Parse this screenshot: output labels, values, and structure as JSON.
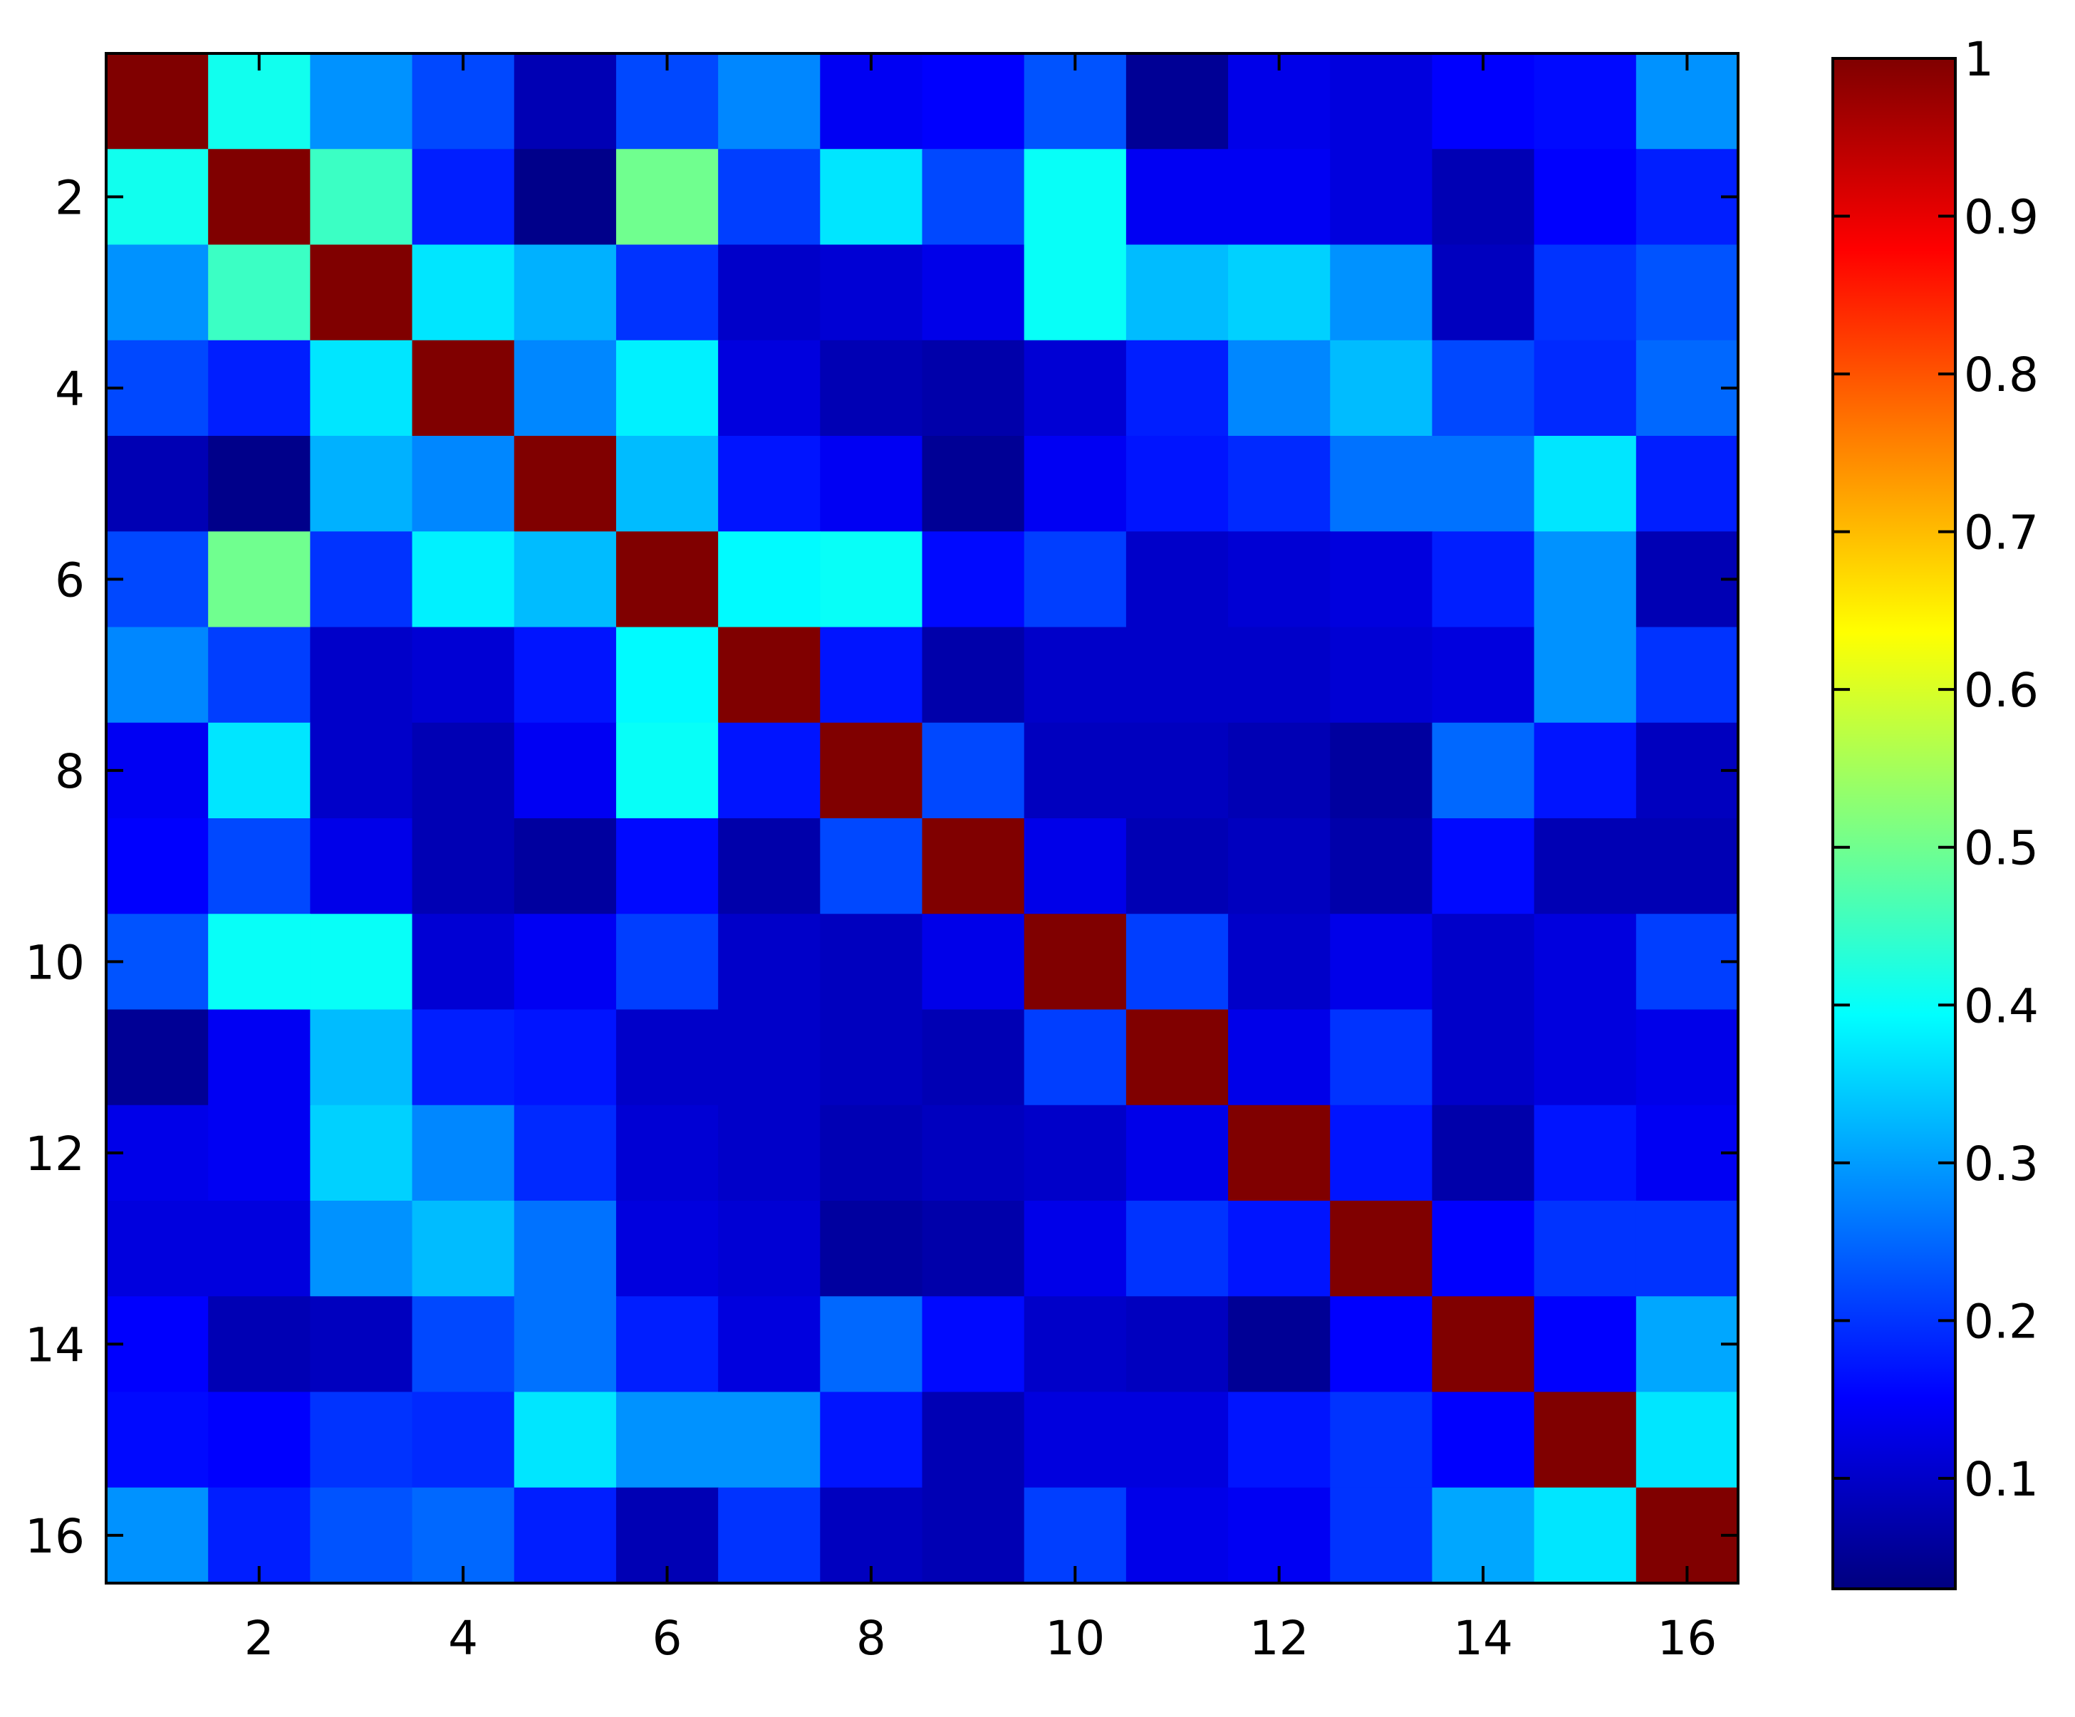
{
  "chart_data": {
    "type": "heatmap",
    "title": "",
    "xlabel": "",
    "ylabel": "",
    "x_ticks": [
      "2",
      "4",
      "6",
      "8",
      "10",
      "12",
      "14",
      "16"
    ],
    "y_ticks": [
      "2",
      "4",
      "6",
      "8",
      "10",
      "12",
      "14",
      "16"
    ],
    "x_tick_values": [
      2,
      4,
      6,
      8,
      10,
      12,
      14,
      16
    ],
    "y_tick_values": [
      2,
      4,
      6,
      8,
      10,
      12,
      14,
      16
    ],
    "xlim": [
      0.5,
      16.5
    ],
    "ylim": [
      0.5,
      16.5
    ],
    "colormap": "jet",
    "clim": [
      0.03,
      1.0
    ],
    "colorbar": {
      "placement": "right",
      "ticks": [
        "0.1",
        "0.2",
        "0.3",
        "0.4",
        "0.5",
        "0.6",
        "0.7",
        "0.8",
        "0.9",
        "1"
      ],
      "tick_values": [
        0.1,
        0.2,
        0.3,
        0.4,
        0.5,
        0.6,
        0.7,
        0.8,
        0.9,
        1.0
      ]
    },
    "matrix": [
      [
        1.0,
        0.41,
        0.29,
        0.22,
        0.08,
        0.22,
        0.28,
        0.14,
        0.15,
        0.23,
        0.05,
        0.13,
        0.12,
        0.15,
        0.16,
        0.29
      ],
      [
        0.41,
        1.0,
        0.45,
        0.18,
        0.04,
        0.5,
        0.21,
        0.37,
        0.22,
        0.4,
        0.14,
        0.14,
        0.12,
        0.08,
        0.15,
        0.18
      ],
      [
        0.29,
        0.45,
        1.0,
        0.37,
        0.32,
        0.2,
        0.1,
        0.11,
        0.13,
        0.4,
        0.33,
        0.35,
        0.29,
        0.09,
        0.2,
        0.23
      ],
      [
        0.22,
        0.18,
        0.37,
        1.0,
        0.28,
        0.38,
        0.12,
        0.08,
        0.07,
        0.11,
        0.18,
        0.28,
        0.33,
        0.22,
        0.19,
        0.25
      ],
      [
        0.08,
        0.04,
        0.32,
        0.28,
        1.0,
        0.33,
        0.17,
        0.14,
        0.05,
        0.14,
        0.17,
        0.19,
        0.26,
        0.26,
        0.37,
        0.18
      ],
      [
        0.22,
        0.5,
        0.2,
        0.38,
        0.33,
        1.0,
        0.39,
        0.4,
        0.16,
        0.21,
        0.1,
        0.11,
        0.12,
        0.18,
        0.29,
        0.08
      ],
      [
        0.28,
        0.21,
        0.1,
        0.11,
        0.17,
        0.39,
        1.0,
        0.17,
        0.07,
        0.1,
        0.1,
        0.1,
        0.11,
        0.12,
        0.29,
        0.2
      ],
      [
        0.14,
        0.37,
        0.1,
        0.08,
        0.14,
        0.4,
        0.17,
        1.0,
        0.22,
        0.09,
        0.09,
        0.08,
        0.06,
        0.25,
        0.17,
        0.09
      ],
      [
        0.15,
        0.22,
        0.13,
        0.08,
        0.06,
        0.16,
        0.07,
        0.22,
        1.0,
        0.13,
        0.08,
        0.09,
        0.07,
        0.16,
        0.08,
        0.08
      ],
      [
        0.23,
        0.4,
        0.4,
        0.11,
        0.14,
        0.21,
        0.1,
        0.09,
        0.13,
        1.0,
        0.21,
        0.1,
        0.13,
        0.1,
        0.12,
        0.21
      ],
      [
        0.05,
        0.14,
        0.33,
        0.18,
        0.17,
        0.1,
        0.1,
        0.09,
        0.08,
        0.21,
        1.0,
        0.13,
        0.2,
        0.1,
        0.12,
        0.13
      ],
      [
        0.13,
        0.14,
        0.35,
        0.28,
        0.19,
        0.11,
        0.1,
        0.08,
        0.09,
        0.1,
        0.13,
        1.0,
        0.17,
        0.07,
        0.17,
        0.14
      ],
      [
        0.12,
        0.12,
        0.29,
        0.33,
        0.26,
        0.12,
        0.11,
        0.06,
        0.07,
        0.13,
        0.2,
        0.17,
        1.0,
        0.15,
        0.2,
        0.2
      ],
      [
        0.15,
        0.08,
        0.09,
        0.22,
        0.26,
        0.18,
        0.12,
        0.25,
        0.16,
        0.1,
        0.09,
        0.05,
        0.15,
        1.0,
        0.15,
        0.31
      ],
      [
        0.16,
        0.15,
        0.2,
        0.19,
        0.37,
        0.29,
        0.29,
        0.17,
        0.08,
        0.12,
        0.12,
        0.17,
        0.2,
        0.15,
        1.0,
        0.37
      ],
      [
        0.29,
        0.18,
        0.23,
        0.25,
        0.18,
        0.08,
        0.2,
        0.09,
        0.08,
        0.21,
        0.13,
        0.14,
        0.2,
        0.31,
        0.37,
        1.0
      ]
    ]
  }
}
